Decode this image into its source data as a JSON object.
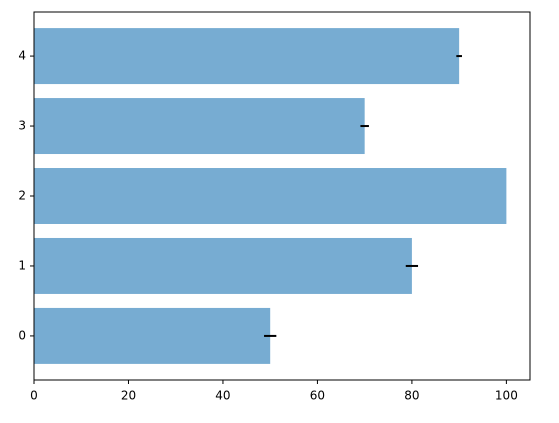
{
  "chart_data": {
    "type": "barh",
    "y": [
      0,
      1,
      2,
      3,
      4
    ],
    "values": [
      50,
      80,
      100,
      70,
      90
    ],
    "errors": [
      1.3,
      1.3,
      0,
      0.9,
      0.6
    ],
    "color": "#77acd2",
    "error_color": "#000000",
    "bar_height": 0.8,
    "xlim": [
      0,
      105
    ],
    "xticks": [
      0,
      20,
      40,
      60,
      80,
      100
    ],
    "ylim": [
      -0.63,
      4.63
    ],
    "yticks": [
      0,
      1,
      2,
      3,
      4
    ]
  }
}
